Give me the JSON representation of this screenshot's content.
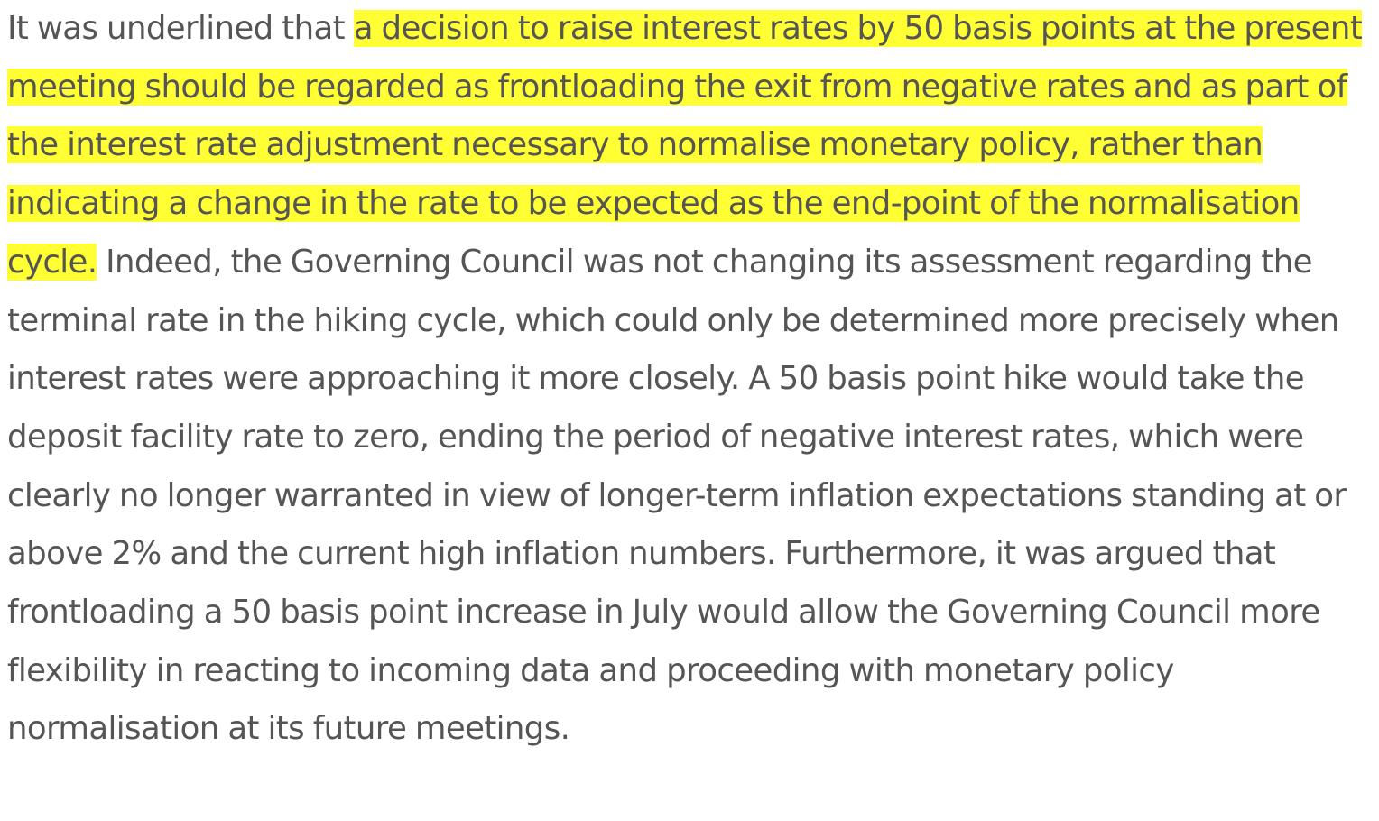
{
  "paragraph": {
    "lead": "It was underlined that ",
    "highlighted": "a decision to raise interest rates by 50 basis points at the present meeting should be regarded as frontloading the exit from negative rates and as part of the interest rate adjustment necessary to normalise monetary policy, rather than indicating a change in the rate to be expected as the end-point of the normalisation cycle.",
    "rest": " Indeed, the Governing Council was not changing its assessment regarding the terminal rate in the hiking cycle, which could only be determined more precisely when interest rates were approaching it more closely. A 50 basis point hike would take the deposit facility rate to zero, ending the period of negative interest rates, which were clearly no longer warranted in view of longer-term inflation expectations standing at or above 2% and the current high inflation numbers. Furthermore, it was argued that frontloading a 50 basis point increase in July would allow the Governing Council more flexibility in reacting to incoming data and proceeding with monetary policy normalisation at its future meetings."
  },
  "colors": {
    "text": "#555555",
    "highlight": "#ffff33",
    "background": "#ffffff"
  }
}
